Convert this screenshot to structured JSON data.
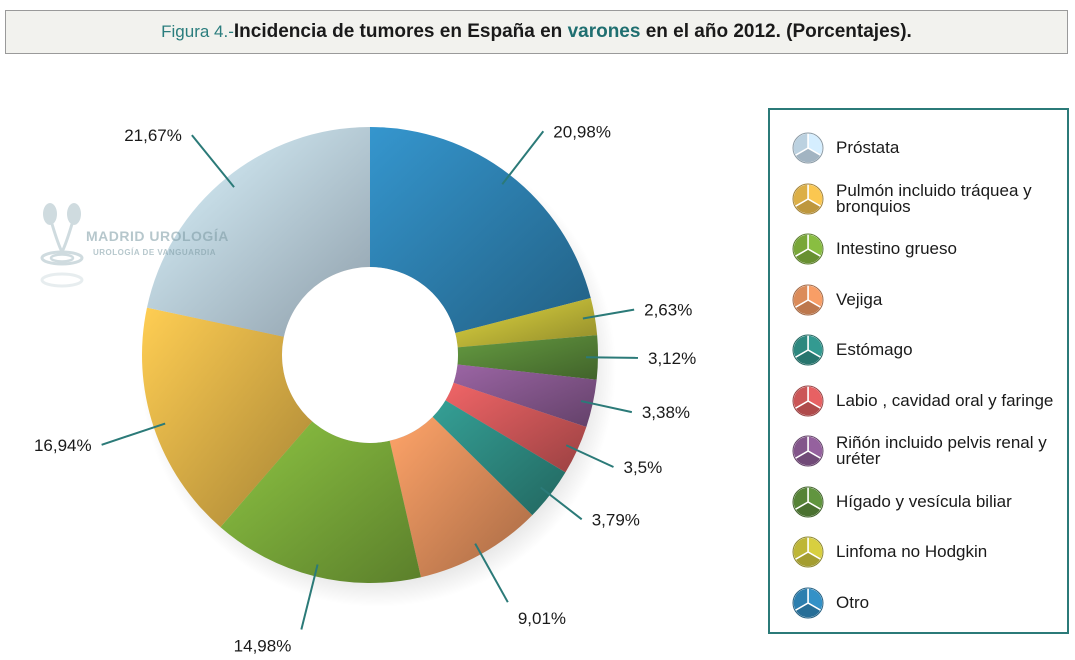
{
  "title": {
    "prefix": "Figura 4.-",
    "main": "Incidencia de tumores en España en",
    "highlight": "varones",
    "suffix": "en el año 2012. (Porcentajes)."
  },
  "watermark": {
    "title": "MADRID UROLOGÍA",
    "subtitle": "UROLOGÍA DE VANGUARDIA"
  },
  "chart_data": {
    "type": "pie",
    "variant": "donut",
    "legend_position": "right",
    "categories": [
      "Otro",
      "Linfoma no Hodgkin",
      "Hígado y vesícula biliar",
      "Riñón incluido pelvis renal y uréter",
      "Labio , cavidad oral y faringe",
      "Estómago",
      "Vejiga",
      "Intestino grueso",
      "Pulmón incluido tráquea y bronquios",
      "Próstata"
    ],
    "values": [
      20.98,
      2.63,
      3.12,
      3.38,
      3.5,
      3.79,
      9.01,
      14.98,
      16.94,
      21.67
    ],
    "labels": [
      "20,98%",
      "2,63%",
      "3,12%",
      "3,38%",
      "3,5%",
      "3,79%",
      "9,01%",
      "14,98%",
      "16,94%",
      "21,67%"
    ],
    "colors": [
      "#2f86b8",
      "#c8c03a",
      "#5a8a3a",
      "#8a5a92",
      "#d65a5c",
      "#2f8f86",
      "#e6925e",
      "#7fb03c",
      "#e8b84a",
      "#c5dcec"
    ],
    "legend": [
      {
        "label": "Próstata",
        "color": "#c5dcec"
      },
      {
        "label": "Pulmón incluido tráquea y bronquios",
        "color": "#e8b84a"
      },
      {
        "label": "Intestino grueso",
        "color": "#7fb03c"
      },
      {
        "label": "Vejiga",
        "color": "#e6925e"
      },
      {
        "label": "Estómago",
        "color": "#2f8f86"
      },
      {
        "label": "Labio , cavidad oral y faringe",
        "color": "#d65a5c"
      },
      {
        "label": "Riñón incluido pelvis renal y uréter",
        "color": "#8a5a92"
      },
      {
        "label": "Hígado y vesícula biliar",
        "color": "#5a8a3a"
      },
      {
        "label": "Linfoma no Hodgkin",
        "color": "#c8c03a"
      },
      {
        "label": "Otro",
        "color": "#2f86b8"
      }
    ]
  }
}
